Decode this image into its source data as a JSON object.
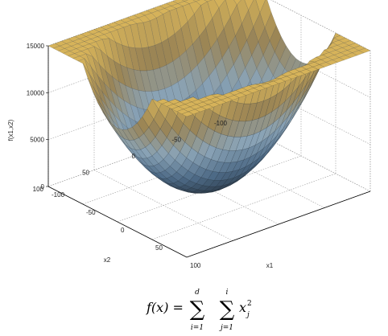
{
  "chart_data": {
    "type": "surface3d",
    "function": "sum_{i=1}^{d} sum_{j=1}^{i} x_j^2",
    "d": 2,
    "x1_range": [
      -100,
      100
    ],
    "x2_range": [
      -100,
      100
    ],
    "z_range": [
      0,
      15000
    ],
    "x1_ticks": [
      "-100",
      "-50",
      "0",
      "50",
      "100"
    ],
    "x2_ticks": [
      "100",
      "50",
      "0",
      "-50",
      "-100"
    ],
    "z_ticks": [
      "0",
      "5000",
      "10000",
      "15000"
    ],
    "xlabel": "x1",
    "ylabel": "x2",
    "zlabel": "f(x1,x2)",
    "grid": true,
    "colormap": [
      "#26323e",
      "#4d6a86",
      "#8aa3b6",
      "#9a8455",
      "#d6b35a"
    ]
  },
  "formula": {
    "lhs": "f(x) =",
    "sum1_top": "d",
    "sum1_bottom": "i=1",
    "sum2_top": "i",
    "sum2_bottom": "j=1",
    "term": "x",
    "term_sub": "j",
    "term_sup": "2"
  }
}
